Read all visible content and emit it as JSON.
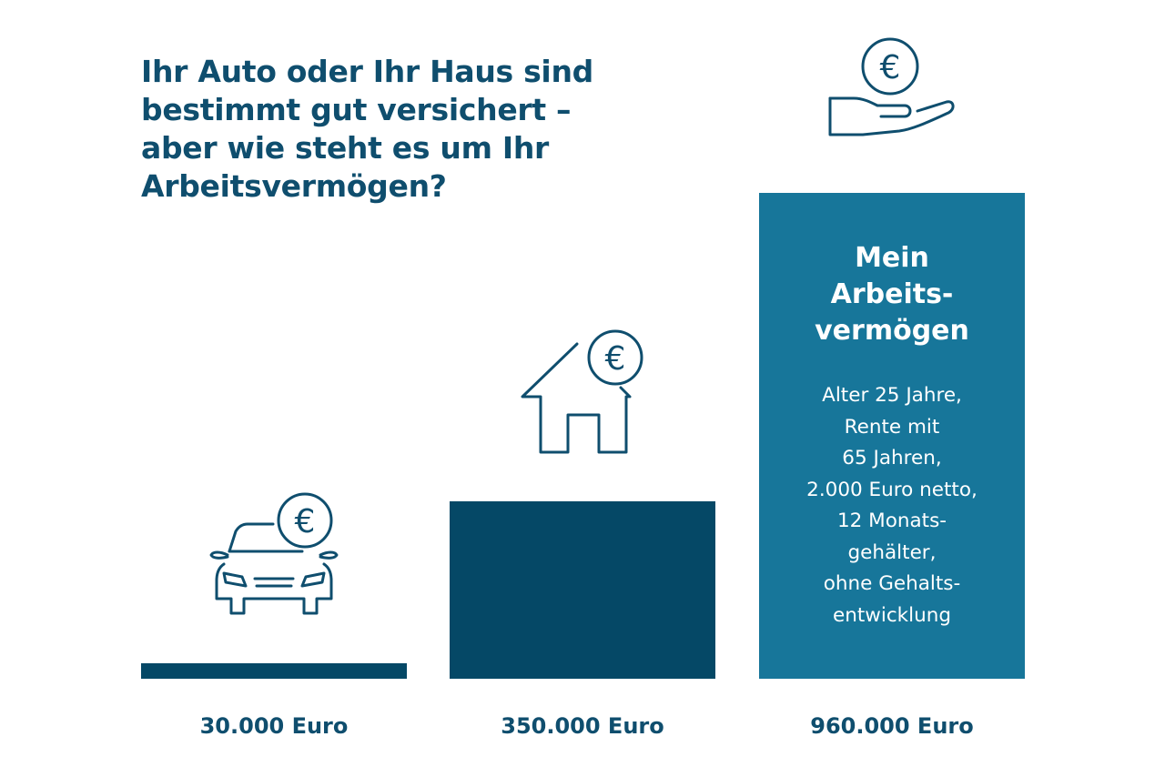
{
  "headline": {
    "lines": [
      "Ihr Auto oder Ihr Haus sind",
      "bestimmt gut versichert –",
      "aber wie steht es um Ihr",
      "Arbeitsvermögen?"
    ]
  },
  "colors": {
    "dark_bar": "#054866",
    "light_bar": "#17769a",
    "text": "#0f4e6e",
    "icon_stroke": "#0f4e6e"
  },
  "icons": {
    "car": "car-with-euro-icon",
    "house": "house-with-euro-icon",
    "hand": "hand-with-euro-icon",
    "euro_symbol": "€"
  },
  "chart_data": {
    "type": "bar",
    "categories": [
      "30.000 Euro",
      "350.000 Euro",
      "960.000 Euro"
    ],
    "values": [
      30000,
      350000,
      960000
    ],
    "value_labels": [
      "30.000 Euro",
      "350.000 Euro",
      "960.000 Euro"
    ],
    "ylim": [
      0,
      960000
    ],
    "grid": false,
    "legend": "none",
    "highlight_bar": {
      "index": 2,
      "title_lines": [
        "Mein",
        "Arbeits-",
        "vermögen"
      ],
      "detail_lines": [
        "Alter 25 Jahre,",
        "Rente mit",
        "65 Jahren,",
        "2.000 Euro netto,",
        "12 Monats-",
        "gehälter,",
        "ohne Gehalts-",
        "entwicklung"
      ]
    }
  }
}
